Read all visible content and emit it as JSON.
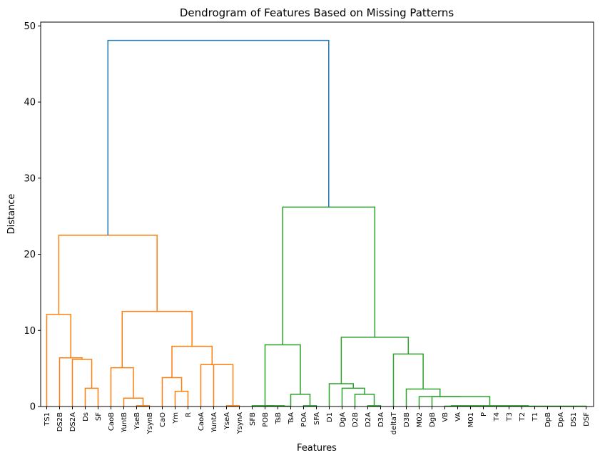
{
  "chart_data": {
    "type": "dendrogram",
    "title": "Dendrogram of Features Based on Missing Patterns",
    "xlabel": "Features",
    "ylabel": "Distance",
    "ylim": [
      0,
      50.5
    ],
    "yticks": [
      0,
      10,
      20,
      30,
      40,
      50
    ],
    "grid": false,
    "colors": {
      "orange": "#ff7f0e",
      "green": "#2ca02c",
      "blue": "#1f77b4"
    },
    "leaves": [
      "TS1",
      "DS2B",
      "DS2A",
      "Ds",
      "SF",
      "CaoB",
      "YuntB",
      "YseB",
      "YsynB",
      "CaO",
      "Ym",
      "R",
      "CaoA",
      "YuntA",
      "YseA",
      "YsynA",
      "SFB",
      "POB",
      "TsB",
      "TsA",
      "POA",
      "SFA",
      "D1",
      "DgA",
      "D2B",
      "D2A",
      "D3A",
      "deltaT",
      "D3B",
      "M02",
      "DgB",
      "VB",
      "VA",
      "M01",
      "P",
      "T4",
      "T3",
      "T2",
      "T1",
      "DpB",
      "DpA",
      "DS1",
      "DSF"
    ],
    "links": [
      {
        "xl": 3,
        "yl": 0,
        "xr": 4,
        "yr": 0,
        "h": 2.4,
        "color": "orange"
      },
      {
        "xl": 2,
        "yl": 0,
        "xr": 3.5,
        "yr": 2.4,
        "h": 6.2,
        "color": "orange"
      },
      {
        "xl": 1,
        "yl": 0,
        "xr": 2.75,
        "yr": 6.2,
        "h": 6.4,
        "color": "orange"
      },
      {
        "xl": 0,
        "yl": 0,
        "xr": 1.875,
        "yr": 6.4,
        "h": 12.1,
        "color": "orange"
      },
      {
        "xl": 7,
        "yl": 0,
        "xr": 8,
        "yr": 0,
        "h": 0.1,
        "color": "orange"
      },
      {
        "xl": 6,
        "yl": 0,
        "xr": 7.5,
        "yr": 0.1,
        "h": 1.1,
        "color": "orange"
      },
      {
        "xl": 5,
        "yl": 0,
        "xr": 6.75,
        "yr": 1.1,
        "h": 5.1,
        "color": "orange"
      },
      {
        "xl": 10,
        "yl": 0,
        "xr": 11,
        "yr": 0,
        "h": 2.0,
        "color": "orange"
      },
      {
        "xl": 9,
        "yl": 0,
        "xr": 10.5,
        "yr": 2.0,
        "h": 3.8,
        "color": "orange"
      },
      {
        "xl": 14,
        "yl": 0,
        "xr": 15,
        "yr": 0,
        "h": 0.1,
        "color": "orange"
      },
      {
        "xl": 13,
        "yl": 0,
        "xr": 14.5,
        "yr": 0.1,
        "h": 5.5,
        "color": "orange"
      },
      {
        "xl": 12,
        "yl": 0,
        "xr": 13.75,
        "yr": 5.5,
        "h": 5.5,
        "color": "orange"
      },
      {
        "xl": 9.75,
        "yl": 3.8,
        "xr": 12.875,
        "yr": 5.5,
        "h": 7.9,
        "color": "orange"
      },
      {
        "xl": 5.875,
        "yl": 5.1,
        "xr": 11.3125,
        "yr": 7.9,
        "h": 12.5,
        "color": "orange"
      },
      {
        "xl": 0.9375,
        "yl": 12.1,
        "xr": 8.59375,
        "yr": 12.5,
        "h": 22.5,
        "color": "orange"
      },
      {
        "xl": 18,
        "yl": 0,
        "xr": 19,
        "yr": 0,
        "h": 0.05,
        "color": "green"
      },
      {
        "xl": 17,
        "yl": 0,
        "xr": 18.5,
        "yr": 0.05,
        "h": 0.1,
        "color": "green"
      },
      {
        "xl": 16,
        "yl": 0,
        "xr": 17.75,
        "yr": 0.1,
        "h": 0.1,
        "color": "green"
      },
      {
        "xl": 20,
        "yl": 0,
        "xr": 21,
        "yr": 0,
        "h": 0.1,
        "color": "green"
      },
      {
        "xl": 19,
        "yl": 0,
        "xr": 20.5,
        "yr": 0.1,
        "h": 1.6,
        "color": "green"
      },
      {
        "xl": 17,
        "yl": 0.1,
        "xr": 19.75,
        "yr": 1.6,
        "h": 8.1,
        "color": "green"
      },
      {
        "xl": 25,
        "yl": 0,
        "xr": 26,
        "yr": 0,
        "h": 0.1,
        "color": "green"
      },
      {
        "xl": 24,
        "yl": 0,
        "xr": 25.5,
        "yr": 0.1,
        "h": 1.6,
        "color": "green"
      },
      {
        "xl": 23,
        "yl": 0,
        "xr": 24.75,
        "yr": 1.6,
        "h": 2.4,
        "color": "green"
      },
      {
        "xl": 22,
        "yl": 0,
        "xr": 23.875,
        "yr": 2.4,
        "h": 3.0,
        "color": "green"
      },
      {
        "xl": 31,
        "yl": 0,
        "xr": 32,
        "yr": 0,
        "h": 0.05,
        "color": "green"
      },
      {
        "xl": 33,
        "yl": 0,
        "xr": 42,
        "yr": 0,
        "h": 0.05,
        "color": "green"
      },
      {
        "xl": 31.5,
        "yl": 0.05,
        "xr": 37.5,
        "yr": 0.05,
        "h": 0.1,
        "color": "green"
      },
      {
        "xl": 30,
        "yl": 0,
        "xr": 34.5,
        "yr": 0.1,
        "h": 1.3,
        "color": "green"
      },
      {
        "xl": 29,
        "yl": 0,
        "xr": 32.25,
        "yr": 1.3,
        "h": 1.3,
        "color": "green"
      },
      {
        "xl": 28,
        "yl": 0,
        "xr": 30.625,
        "yr": 1.3,
        "h": 2.3,
        "color": "green"
      },
      {
        "xl": 27,
        "yl": 0,
        "xr": 29.3125,
        "yr": 2.3,
        "h": 6.9,
        "color": "green"
      },
      {
        "xl": 22.9375,
        "yl": 3.0,
        "xr": 28.15625,
        "yr": 6.9,
        "h": 9.1,
        "color": "green"
      },
      {
        "xl": 18.375,
        "yl": 8.1,
        "xr": 25.546875,
        "yr": 9.1,
        "h": 26.2,
        "color": "green"
      },
      {
        "xl": 4.765625,
        "yl": 22.5,
        "xr": 21.9609375,
        "yr": 26.2,
        "h": 48.1,
        "color": "blue"
      }
    ]
  }
}
